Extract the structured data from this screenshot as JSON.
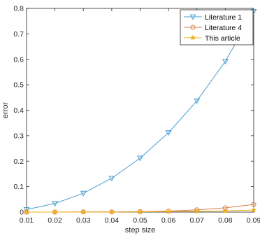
{
  "chart_data": {
    "type": "line",
    "xlabel": "step size",
    "ylabel": "error",
    "x": [
      0.01,
      0.02,
      0.03,
      0.04,
      0.05,
      0.06,
      0.07,
      0.08,
      0.09
    ],
    "xlim": [
      0.01,
      0.09
    ],
    "ylim": [
      0,
      0.8
    ],
    "xticks": [
      "0.01",
      "0.02",
      "0.03",
      "0.04",
      "0.05",
      "0.06",
      "0.07",
      "0.08",
      "0.09"
    ],
    "yticks": [
      "0",
      "0.1",
      "0.2",
      "0.3",
      "0.4",
      "0.5",
      "0.6",
      "0.7",
      "0.8"
    ],
    "grid": false,
    "legend_position": "top-right",
    "series": [
      {
        "name": "Literature 1",
        "color": "#4a9ed2",
        "marker": "triangle-down",
        "values": [
          0.01,
          0.034,
          0.074,
          0.133,
          0.212,
          0.312,
          0.437,
          0.592,
          0.788
        ]
      },
      {
        "name": "Literature 4",
        "color": "#d9804a",
        "marker": "circle",
        "values": [
          0.0,
          0.0,
          0.001,
          0.001,
          0.002,
          0.004,
          0.009,
          0.017,
          0.03
        ]
      },
      {
        "name": "This article",
        "color": "#edb120",
        "marker": "star",
        "values": [
          0.0,
          0.0,
          0.0,
          0.0,
          0.001,
          0.002,
          0.003,
          0.005,
          0.008
        ]
      }
    ]
  }
}
